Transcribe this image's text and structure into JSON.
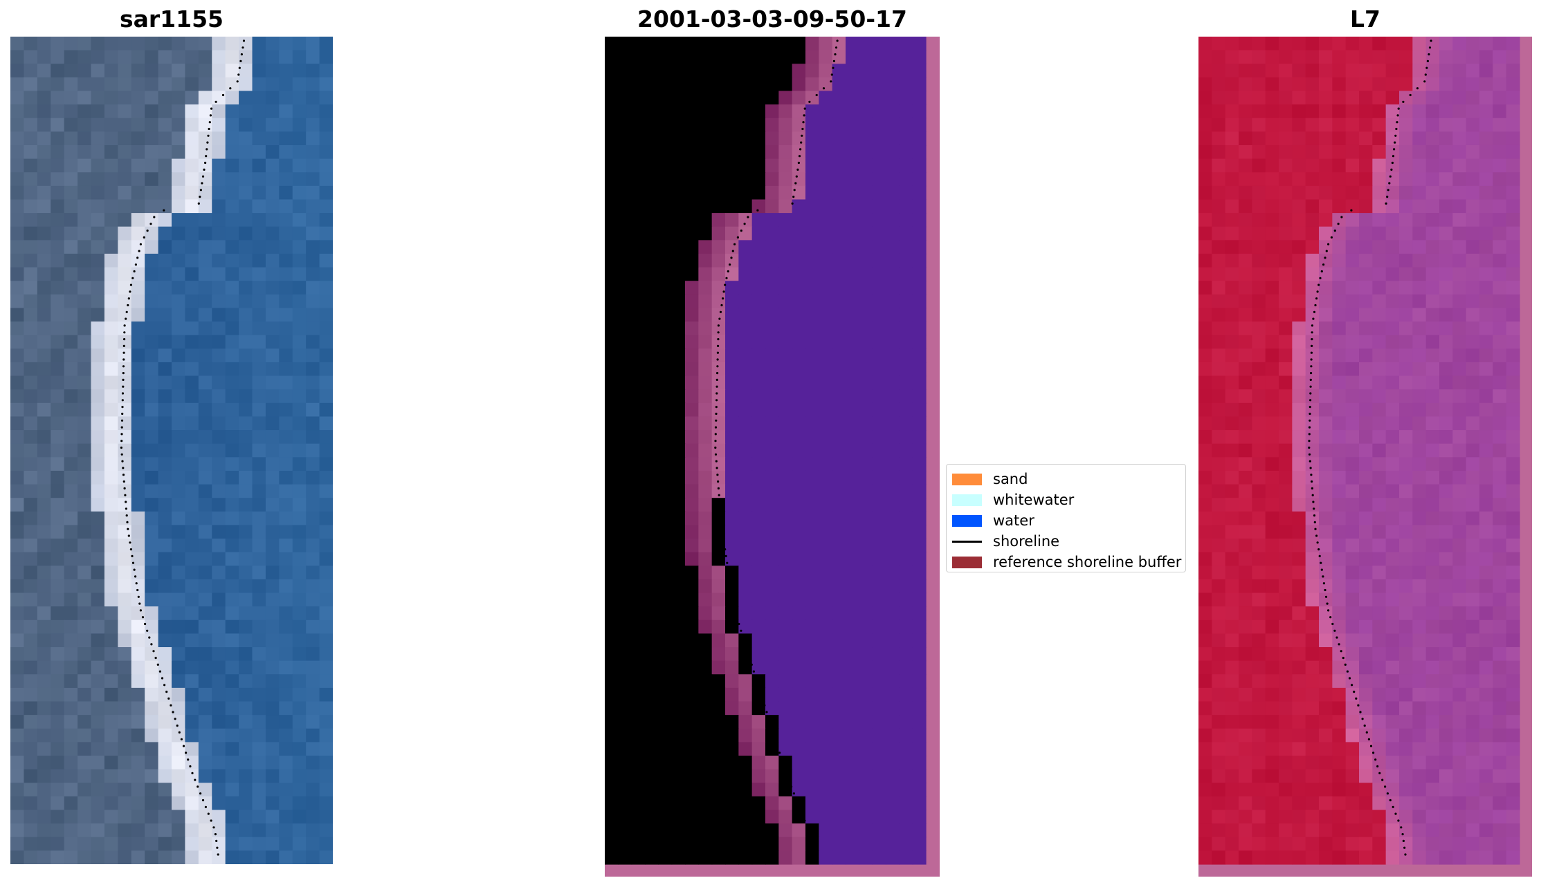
{
  "panels": [
    {
      "title": "sar1155"
    },
    {
      "title": "2001-03-03-09-50-17"
    },
    {
      "title": "L7"
    }
  ],
  "legend": {
    "items": [
      {
        "label": "sand",
        "color": "#ff8c3a",
        "kind": "patch"
      },
      {
        "label": "whitewater",
        "color": "#c8ffff",
        "kind": "patch"
      },
      {
        "label": "water",
        "color": "#0055ff",
        "kind": "patch"
      },
      {
        "label": "shoreline",
        "color": "#000000",
        "kind": "line"
      },
      {
        "label": "reference shoreline buffer",
        "color": "#9b2d35",
        "kind": "patch"
      }
    ]
  },
  "colors": {
    "rgb_water": "#2a5a92",
    "rgb_land": "#4a607c",
    "rgb_beach": "#e6e8f2",
    "class_land": "#7a2360",
    "class_water": "#56229a",
    "class_buffer": "#c23c4a",
    "class_border": "#bd6898",
    "nir_land": "#c0143c",
    "nir_water": "#a2499e",
    "shoreline": "#000000"
  }
}
